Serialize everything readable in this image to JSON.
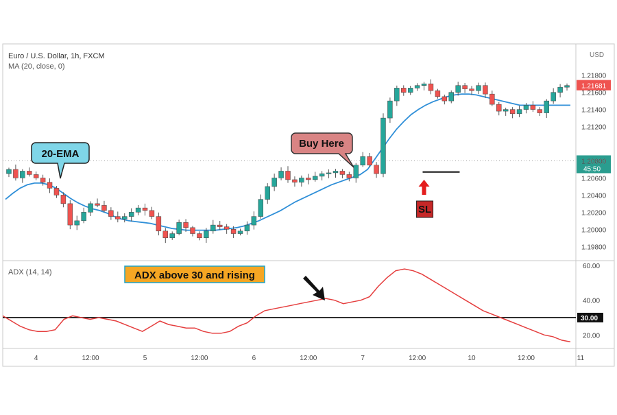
{
  "chart_data": [
    {
      "type": "candlestick",
      "legend": {
        "title": "Euro / U.S. Dollar, 1h, FXCM",
        "indicator": "MA (20, close, 0)"
      },
      "currency": "USD",
      "ylim": [
        1.1965,
        1.2215
      ],
      "x_ticks": [
        {
          "label": "4",
          "i": 4
        },
        {
          "label": "12:00",
          "i": 12
        },
        {
          "label": "5",
          "i": 20
        },
        {
          "label": "12:00",
          "i": 28
        },
        {
          "label": "6",
          "i": 36
        },
        {
          "label": "12:00",
          "i": 44
        },
        {
          "label": "7",
          "i": 52
        },
        {
          "label": "12:00",
          "i": 60
        },
        {
          "label": "10",
          "i": 68
        },
        {
          "label": "12:00",
          "i": 76
        },
        {
          "label": "11",
          "i": 84
        },
        {
          "label": "12:00",
          "i": 92
        }
      ],
      "y_ticks": [
        "1.21800",
        "1.21600",
        "1.21400",
        "1.21200",
        "1.20800",
        "1.20600",
        "1.20400",
        "1.20200",
        "1.20000",
        "1.19800"
      ],
      "last_price": {
        "label": "1.21681",
        "value": 1.2168,
        "color": "#ef5350"
      },
      "current_line": {
        "label": "1.20800",
        "value": 1.208,
        "countdown": "45:50"
      },
      "colors": {
        "up": "#26a69a",
        "down": "#ef5350",
        "ma": "#2f8fd8"
      },
      "closes": [
        1.207,
        1.206,
        1.2068,
        1.2064,
        1.206,
        1.2055,
        1.2048,
        1.204,
        1.203,
        1.2005,
        1.201,
        1.202,
        1.203,
        1.2028,
        1.2022,
        1.2015,
        1.2012,
        1.2015,
        1.202,
        1.2025,
        1.2022,
        1.2015,
        1.1998,
        1.199,
        1.1995,
        1.2008,
        1.2002,
        1.1995,
        1.199,
        1.1998,
        1.2005,
        1.2003,
        1.2,
        1.1995,
        1.1998,
        1.2005,
        1.2015,
        1.2035,
        1.205,
        1.206,
        1.2068,
        1.2058,
        1.2055,
        1.206,
        1.2058,
        1.2062,
        1.2065,
        1.2066,
        1.2068,
        1.2064,
        1.206,
        1.2075,
        1.2085,
        1.2075,
        1.2065,
        1.213,
        1.215,
        1.2165,
        1.216,
        1.2165,
        1.2168,
        1.217,
        1.2162,
        1.2155,
        1.215,
        1.216,
        1.2168,
        1.2164,
        1.2162,
        1.2168,
        1.2158,
        1.2146,
        1.2138,
        1.214,
        1.2135,
        1.214,
        1.2145,
        1.214,
        1.2136,
        1.215,
        1.216,
        1.2166,
        1.2168
      ],
      "ma": [
        1.2035,
        1.2042,
        1.2048,
        1.2052,
        1.2054,
        1.2054,
        1.2052,
        1.2048,
        1.2042,
        1.2036,
        1.2031,
        1.2027,
        1.2024,
        1.2022,
        1.2019,
        1.2015,
        1.2012,
        1.201,
        1.2009,
        1.2008,
        1.2007,
        1.2005,
        1.2003,
        1.2001,
        1.2,
        1.1999,
        1.1999,
        1.1999,
        1.1999,
        1.1999,
        1.2,
        1.2001,
        1.2002,
        1.2004,
        1.2007,
        1.201,
        1.2014,
        1.2018,
        1.2022,
        1.2027,
        1.2032,
        1.2036,
        1.204,
        1.2044,
        1.2048,
        1.2052,
        1.2055,
        1.2058,
        1.2061,
        1.2064,
        1.207,
        1.2082,
        1.2094,
        1.2106,
        1.2117,
        1.2126,
        1.2134,
        1.214,
        1.2145,
        1.2149,
        1.2152,
        1.2155,
        1.2157,
        1.2158,
        1.2158,
        1.2157,
        1.2155,
        1.2153,
        1.2151,
        1.2149,
        1.2147,
        1.2145,
        1.2145,
        1.2145,
        1.2145,
        1.2145,
        1.2145,
        1.2145,
        1.2145
      ],
      "ma_start_index": 5,
      "annotations": {
        "ema_callout": "20-EMA",
        "buy_callout": "Buy Here",
        "sl_label": "SL",
        "entry_index": 62,
        "entry_price": 1.2067,
        "sl_index": 61
      }
    },
    {
      "type": "line",
      "title": "ADX (14, 14)",
      "ylim": [
        13,
        62
      ],
      "y_ticks": [
        "60.00",
        "40.00",
        "20.00"
      ],
      "threshold": {
        "label": "30.00",
        "value": 30
      },
      "color": "#e53e3e",
      "annotation": "ADX above 30 and rising",
      "values": [
        31,
        28,
        25,
        23,
        22,
        22,
        23,
        29,
        31,
        30,
        29,
        30,
        29,
        28,
        26,
        24,
        22,
        25,
        28,
        26,
        25,
        24,
        24,
        22,
        21,
        21,
        22,
        25,
        27,
        31,
        34,
        35,
        36,
        37,
        38,
        39,
        40,
        41,
        40,
        38,
        39,
        40,
        42,
        48,
        53,
        57,
        58,
        57,
        55,
        52,
        49,
        46,
        43,
        40,
        37,
        34,
        32,
        30,
        28,
        26,
        24,
        22,
        20,
        19,
        17,
        16
      ]
    }
  ]
}
